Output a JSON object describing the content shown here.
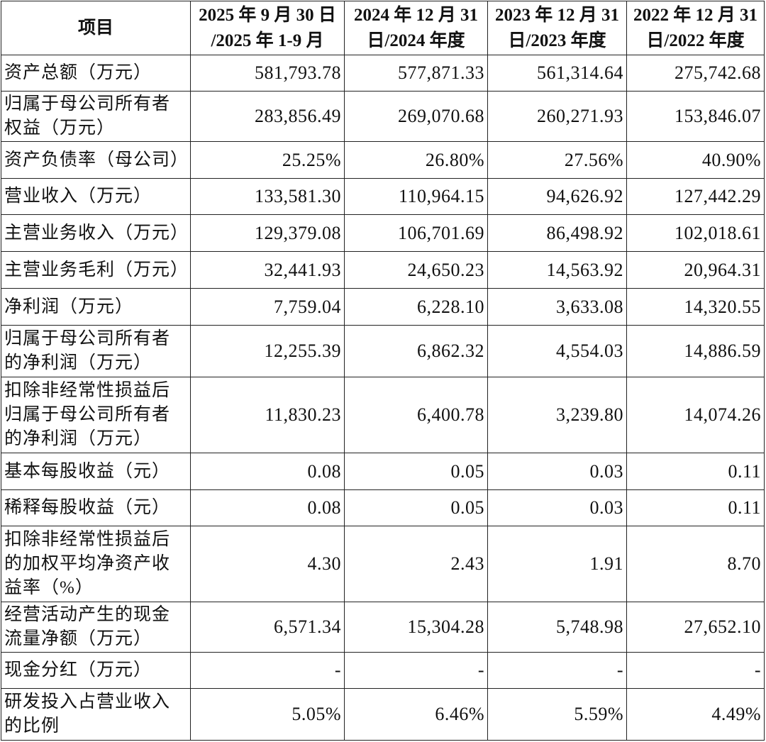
{
  "table": {
    "header": [
      [
        "项目"
      ],
      [
        "2025 年 9 月 30 日",
        "/2025 年 1-9 月"
      ],
      [
        "2024 年 12 月 31",
        "日/2024 年度"
      ],
      [
        "2023 年 12 月 31",
        "日/2023 年度"
      ],
      [
        "2022 年 12 月 31",
        "日/2022 年度"
      ]
    ],
    "rows": [
      {
        "label": [
          "资产总额（万元）"
        ],
        "values": [
          "581,793.78",
          "577,871.33",
          "561,314.64",
          "275,742.68"
        ]
      },
      {
        "label": [
          "归属于母公司所有者",
          "权益（万元）"
        ],
        "values": [
          "283,856.49",
          "269,070.68",
          "260,271.93",
          "153,846.07"
        ]
      },
      {
        "label": [
          "资产负债率（母公司）"
        ],
        "values": [
          "25.25%",
          "26.80%",
          "27.56%",
          "40.90%"
        ]
      },
      {
        "label": [
          "营业收入（万元）"
        ],
        "values": [
          "133,581.30",
          "110,964.15",
          "94,626.92",
          "127,442.29"
        ]
      },
      {
        "label": [
          "主营业务收入（万元）"
        ],
        "values": [
          "129,379.08",
          "106,701.69",
          "86,498.92",
          "102,018.61"
        ]
      },
      {
        "label": [
          "主营业务毛利（万元）"
        ],
        "values": [
          "32,441.93",
          "24,650.23",
          "14,563.92",
          "20,964.31"
        ]
      },
      {
        "label": [
          "净利润（万元）"
        ],
        "values": [
          "7,759.04",
          "6,228.10",
          "3,633.08",
          "14,320.55"
        ]
      },
      {
        "label": [
          "归属于母公司所有者",
          "的净利润（万元）"
        ],
        "values": [
          "12,255.39",
          "6,862.32",
          "4,554.03",
          "14,886.59"
        ]
      },
      {
        "label": [
          "扣除非经常性损益后",
          "归属于母公司所有者",
          "的净利润（万元）"
        ],
        "values": [
          "11,830.23",
          "6,400.78",
          "3,239.80",
          "14,074.26"
        ]
      },
      {
        "label": [
          "基本每股收益（元）"
        ],
        "values": [
          "0.08",
          "0.05",
          "0.03",
          "0.11"
        ]
      },
      {
        "label": [
          "稀释每股收益（元）"
        ],
        "values": [
          "0.08",
          "0.05",
          "0.03",
          "0.11"
        ]
      },
      {
        "label": [
          "扣除非经常性损益后",
          "的加权平均净资产收",
          "益率（%）"
        ],
        "values": [
          "4.30",
          "2.43",
          "1.91",
          "8.70"
        ]
      },
      {
        "label": [
          "经营活动产生的现金",
          "流量净额（万元）"
        ],
        "values": [
          "6,571.34",
          "15,304.28",
          "5,748.98",
          "27,652.10"
        ]
      },
      {
        "label": [
          "现金分红（万元）"
        ],
        "values": [
          "-",
          "-",
          "-",
          "-"
        ]
      },
      {
        "label": [
          "研发投入占营业收入",
          "的比例"
        ],
        "values": [
          "5.05%",
          "6.46%",
          "5.59%",
          "4.49%"
        ]
      }
    ]
  }
}
